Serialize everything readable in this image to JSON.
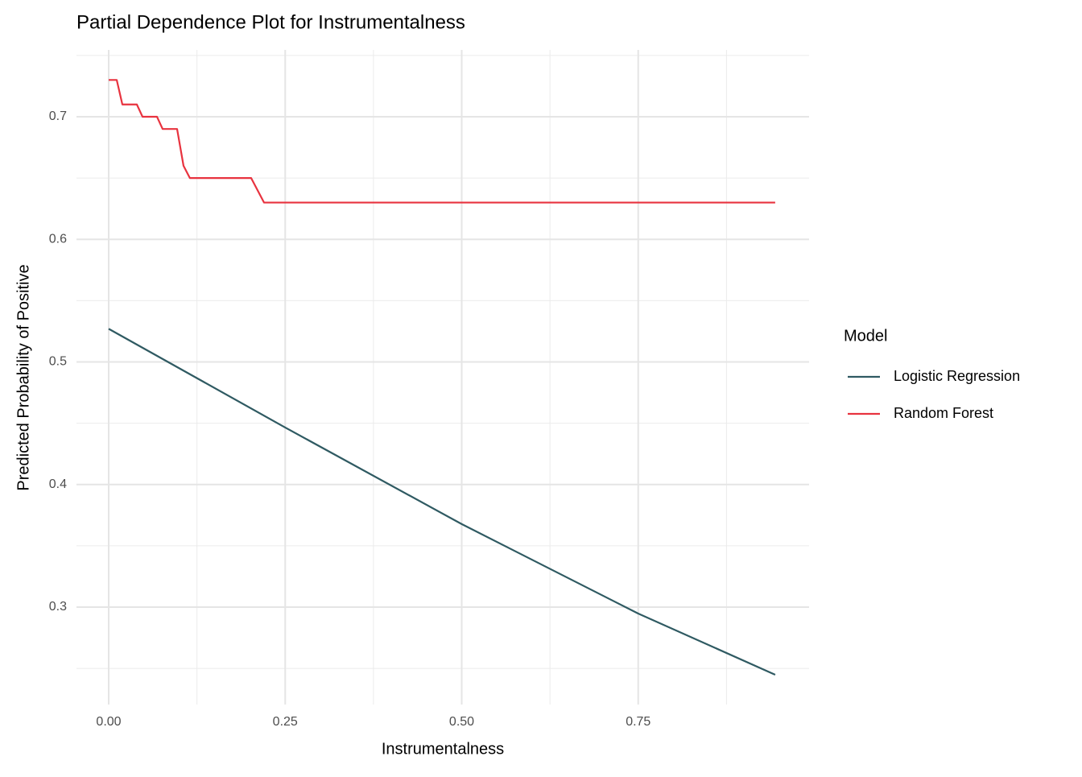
{
  "chart_data": {
    "type": "line",
    "title": "Partial Dependence Plot for Instrumentalness",
    "x_label": "Instrumentalness",
    "y_label": "Predicted Probability of Positive",
    "legend_title": "Model",
    "legend_position": "right",
    "grid": true,
    "xlim": [
      -0.0456,
      0.992
    ],
    "ylim": [
      0.2205,
      0.7545
    ],
    "xticks": [
      {
        "value": 0,
        "label": "0.00"
      },
      0.25,
      {
        "value": 0.5,
        "label": "0.50"
      },
      0.75
    ],
    "yticks": [
      0.3,
      0.4,
      0.5,
      0.6,
      0.7
    ],
    "xminor": [
      0.125,
      0.375,
      0.625,
      0.875
    ],
    "yminor": [
      0.25,
      0.35,
      0.45,
      0.55,
      0.65,
      0.75
    ],
    "series": [
      {
        "name": "Logistic Regression",
        "color": "#2f5a62",
        "x": [
          0,
          0.25,
          0.5,
          0.75,
          0.944
        ],
        "values": [
          0.527,
          0.4465,
          0.3677,
          0.2947,
          0.2448
        ]
      },
      {
        "name": "Random Forest",
        "color": "#e8333f",
        "x": [
          0,
          0.0114,
          0.0194,
          0.0399,
          0.0479,
          0.0684,
          0.0764,
          0.0969,
          0.106,
          0.115,
          0.2018,
          0.22,
          0.944
        ],
        "values": [
          0.73,
          0.73,
          0.71,
          0.71,
          0.7,
          0.7,
          0.69,
          0.69,
          0.66,
          0.65,
          0.65,
          0.63,
          0.63
        ]
      }
    ]
  }
}
